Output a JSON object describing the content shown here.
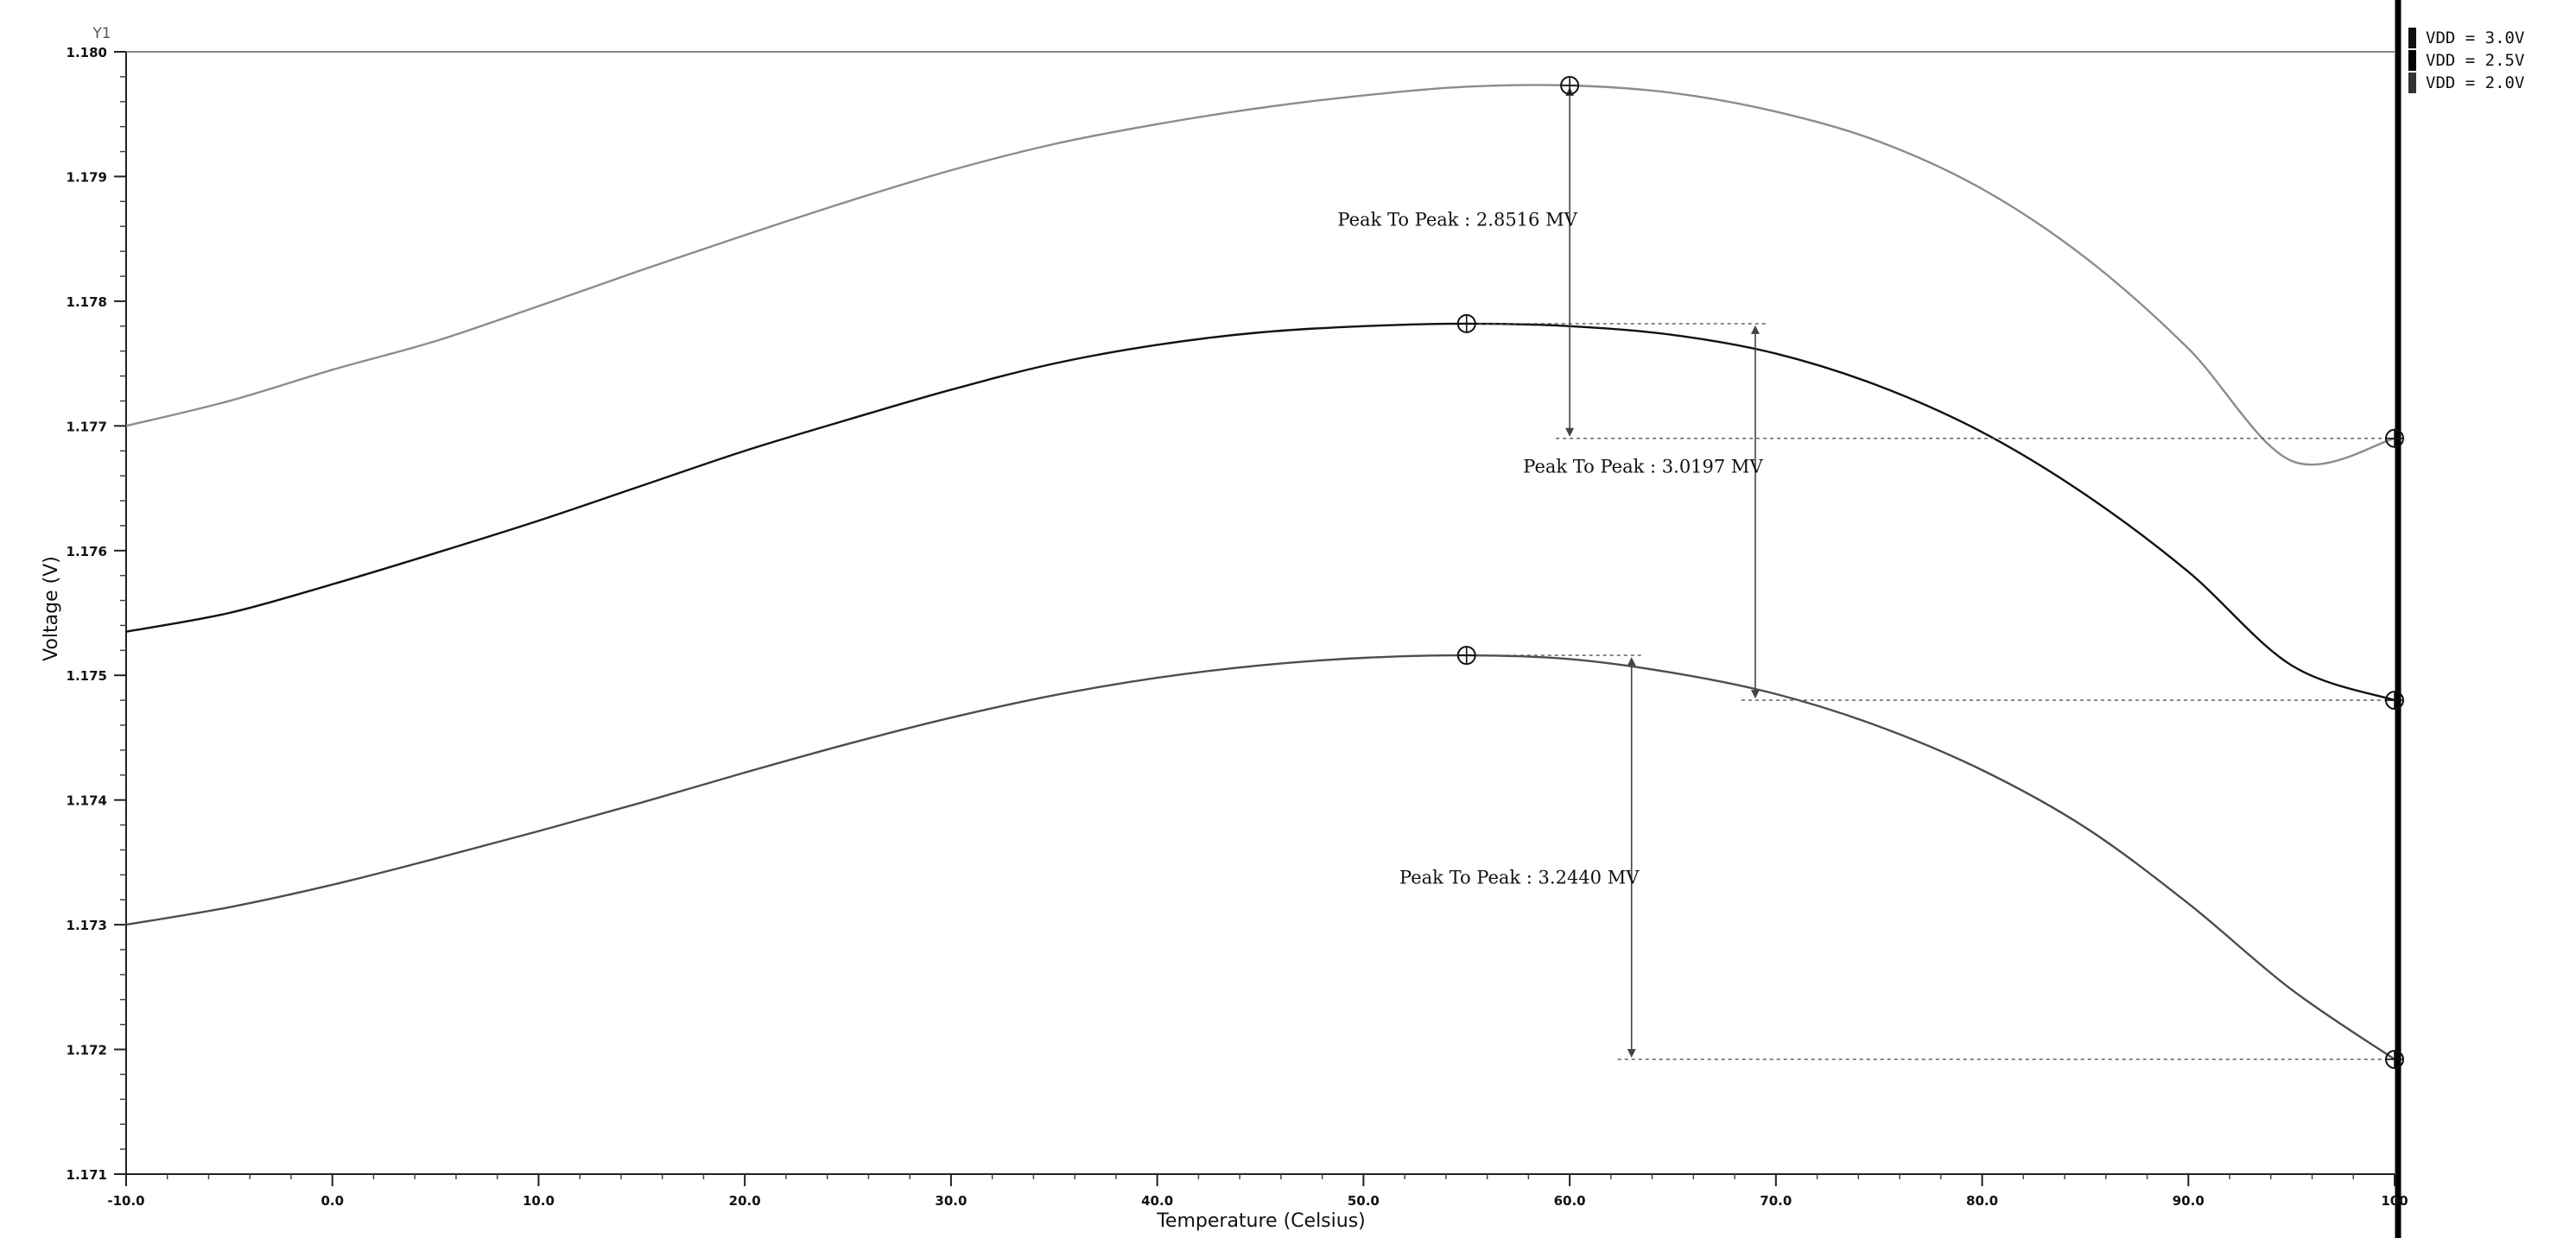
{
  "chart_data": {
    "type": "line",
    "y_axis_name": "Y1",
    "xlabel": "Temperature (Celsius)",
    "ylabel": "Voltage (V)",
    "xlim": [
      -10,
      100
    ],
    "ylim": [
      1.171,
      1.18
    ],
    "x_ticks": [
      -10,
      0,
      10,
      20,
      30,
      40,
      50,
      60,
      70,
      80,
      90,
      100
    ],
    "x_tick_labels": [
      "-10.0",
      "0.0",
      "10.0",
      "20.0",
      "30.0",
      "40.0",
      "50.0",
      "60.0",
      "70.0",
      "80.0",
      "90.0",
      "100"
    ],
    "y_ticks": [
      1.171,
      1.172,
      1.173,
      1.174,
      1.175,
      1.176,
      1.177,
      1.178,
      1.179,
      1.18
    ],
    "y_tick_labels": [
      "1.171",
      "1.172",
      "1.173",
      "1.174",
      "1.175",
      "1.176",
      "1.177",
      "1.178",
      "1.179",
      "1.180"
    ],
    "legend": [
      "VDD = 3.0V",
      "VDD = 2.5V",
      "VDD = 2.0V"
    ],
    "legend_position": "top-right",
    "x": [
      -10,
      -5,
      0,
      5,
      10,
      15,
      20,
      25,
      30,
      35,
      40,
      45,
      50,
      55,
      60,
      65,
      70,
      75,
      80,
      85,
      90,
      95,
      100
    ],
    "series": [
      {
        "name": "VDD = 3.0V",
        "color": "#8c8c8c",
        "values": [
          1.177,
          1.1772,
          1.17745,
          1.17768,
          1.17796,
          1.17825,
          1.17853,
          1.1788,
          1.17905,
          1.17926,
          1.17942,
          1.17955,
          1.17965,
          1.17972,
          1.17973,
          1.17967,
          1.17952,
          1.17928,
          1.1789,
          1.17835,
          1.17762,
          1.17672,
          1.1769
        ]
      },
      {
        "name": "VDD = 2.5V",
        "color": "#111111",
        "values": [
          1.17535,
          1.1755,
          1.17573,
          1.17598,
          1.17624,
          1.17652,
          1.1768,
          1.17705,
          1.17729,
          1.1775,
          1.17765,
          1.17775,
          1.1778,
          1.17782,
          1.1778,
          1.17773,
          1.17758,
          1.17732,
          1.17695,
          1.17645,
          1.17583,
          1.17508,
          1.1748
        ]
      },
      {
        "name": "VDD = 2.0V",
        "color": "#4d4d4d",
        "values": [
          1.173,
          1.17314,
          1.17332,
          1.17353,
          1.17375,
          1.17398,
          1.17422,
          1.17445,
          1.17466,
          1.17484,
          1.17498,
          1.17508,
          1.17514,
          1.17516,
          1.17513,
          1.17502,
          1.17485,
          1.17459,
          1.17424,
          1.17378,
          1.17317,
          1.17248,
          1.17192
        ]
      }
    ],
    "markers": [
      {
        "series": 0,
        "x": 60,
        "y": 1.17973
      },
      {
        "series": 0,
        "x": 100,
        "y": 1.1769
      },
      {
        "series": 1,
        "x": 55,
        "y": 1.17782
      },
      {
        "series": 1,
        "x": 100,
        "y": 1.1748
      },
      {
        "series": 2,
        "x": 55,
        "y": 1.17516
      },
      {
        "series": 2,
        "x": 100,
        "y": 1.17192
      }
    ],
    "annotations": [
      {
        "text": "Peak To Peak : 2.8516 MV",
        "series": 0,
        "arrow_x": 60,
        "y_top": 1.17973,
        "y_bottom": 1.1769
      },
      {
        "text": "Peak To Peak : 3.0197 MV",
        "series": 1,
        "arrow_x": 69,
        "y_top": 1.17782,
        "y_bottom": 1.1748
      },
      {
        "text": "Peak To Peak : 3.2440 MV",
        "series": 2,
        "arrow_x": 63,
        "y_top": 1.17516,
        "y_bottom": 1.17192
      }
    ]
  }
}
